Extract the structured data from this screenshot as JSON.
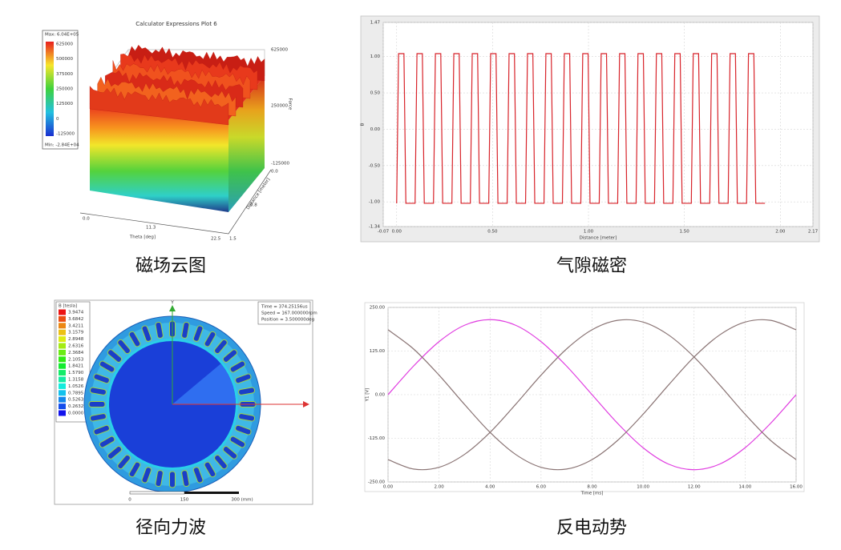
{
  "magnetic_field_plot": {
    "caption": "磁场云图",
    "title": "Calculator Expressions Plot 6",
    "legend": {
      "max": "Max: 6.04E+05",
      "min": "Min: -2.84E+04",
      "values": [
        "625000",
        "500000",
        "375000",
        "250000",
        "125000",
        "0",
        "-125000"
      ]
    },
    "z_axis": {
      "label": "Force",
      "ticks": [
        "625000",
        "250000",
        "-125000"
      ]
    },
    "x_axis": {
      "label": "Theta [deg]",
      "ticks": [
        "0.0",
        "11.3",
        "22.5"
      ]
    },
    "y_axis": {
      "label": "Distance [meter]",
      "ticks": [
        "0.0",
        "0.8",
        "1.5"
      ]
    }
  },
  "air_gap_flux": {
    "caption": "气隙磁密",
    "chart": {
      "type": "line",
      "x_label": "Distance [meter]",
      "y_label": "B",
      "xlim": [
        -0.07,
        2.17
      ],
      "ylim": [
        -1.34,
        1.47
      ],
      "xticks": [
        -0.07,
        {
          "value": 0,
          "label": "0.00"
        },
        {
          "value": 0.5,
          "label": "0.50"
        },
        {
          "value": 1,
          "label": "1.00"
        },
        {
          "value": 1.5,
          "label": "1.50"
        },
        {
          "value": 2,
          "label": "2.00"
        },
        2.17
      ],
      "yticks": [
        1.47,
        {
          "value": 1,
          "label": "1.00"
        },
        {
          "value": 0.5,
          "label": "0.50"
        },
        {
          "value": 0,
          "label": "0.00"
        },
        {
          "value": -0.5,
          "label": "-0.50"
        },
        {
          "value": -1,
          "label": "-1.00"
        },
        -1.34
      ],
      "grid": true,
      "smooth": false,
      "x": [
        0,
        0.01,
        0.038,
        0.048,
        0.096,
        0.106,
        0.134,
        0.144,
        0.192,
        0.202,
        0.23,
        0.24,
        0.288,
        0.298,
        0.326,
        0.336,
        0.384,
        0.394,
        0.422,
        0.432,
        0.48,
        0.49,
        0.518,
        0.528,
        0.576,
        0.586,
        0.614,
        0.624,
        0.672,
        0.682,
        0.71,
        0.72,
        0.768,
        0.778,
        0.806,
        0.816,
        0.864,
        0.874,
        0.902,
        0.912,
        0.96,
        0.97,
        0.998,
        1.008,
        1.056,
        1.066,
        1.094,
        1.104,
        1.152,
        1.162,
        1.19,
        1.2,
        1.248,
        1.258,
        1.286,
        1.296,
        1.344,
        1.354,
        1.382,
        1.392,
        1.44,
        1.45,
        1.478,
        1.488,
        1.536,
        1.546,
        1.574,
        1.584,
        1.632,
        1.642,
        1.67,
        1.68,
        1.728,
        1.738,
        1.766,
        1.776,
        1.824,
        1.834,
        1.862,
        1.872,
        1.92
      ],
      "series": [
        {
          "color": "#d8232a",
          "values": [
            -1.02,
            1.04,
            1.04,
            -1.02,
            -1.02,
            1.04,
            1.04,
            -1.02,
            -1.02,
            1.04,
            1.04,
            -1.02,
            -1.02,
            1.04,
            1.04,
            -1.02,
            -1.02,
            1.04,
            1.04,
            -1.02,
            -1.02,
            1.04,
            1.04,
            -1.02,
            -1.02,
            1.04,
            1.04,
            -1.02,
            -1.02,
            1.04,
            1.04,
            -1.02,
            -1.02,
            1.04,
            1.04,
            -1.02,
            -1.02,
            1.04,
            1.04,
            -1.02,
            -1.02,
            1.04,
            1.04,
            -1.02,
            -1.02,
            1.04,
            1.04,
            -1.02,
            -1.02,
            1.04,
            1.04,
            -1.02,
            -1.02,
            1.04,
            1.04,
            -1.02,
            -1.02,
            1.04,
            1.04,
            -1.02,
            -1.02,
            1.04,
            1.04,
            -1.02,
            -1.02,
            1.04,
            1.04,
            -1.02,
            -1.02,
            1.04,
            1.04,
            -1.02,
            -1.02,
            1.04,
            1.04,
            -1.02,
            -1.02,
            1.04,
            1.04,
            -1.02,
            -1.02
          ]
        }
      ]
    }
  },
  "radial_force": {
    "caption": "径向力波",
    "legend": {
      "title": "B [tesla]",
      "values": [
        "3.9474",
        "3.6842",
        "3.4211",
        "3.1579",
        "2.8948",
        "2.6316",
        "2.3684",
        "2.1053",
        "1.8421",
        "1.5790",
        "1.3158",
        "1.0526",
        "0.7895",
        "0.5263",
        "0.2632",
        "0.0000"
      ]
    },
    "info": [
      "Time = 374.25156us",
      "Speed = 167.000000rpm",
      "Position = 3.500000deg"
    ],
    "axis_label": "Y",
    "scale": [
      "0",
      "150",
      "300 (mm)"
    ]
  },
  "back_emf": {
    "caption": "反电动势",
    "chart": {
      "type": "line",
      "x_label": "Time [ms]",
      "y_label": "Y1 [V]",
      "xlim": [
        0,
        16
      ],
      "ylim": [
        -250,
        250
      ],
      "xticks": [
        {
          "value": 0,
          "label": "0.00"
        },
        {
          "value": 2,
          "label": "2.00"
        },
        {
          "value": 4,
          "label": "4.00"
        },
        {
          "value": 6,
          "label": "6.00"
        },
        {
          "value": 8,
          "label": "8.00"
        },
        {
          "value": 10,
          "label": "10.00"
        },
        {
          "value": 12,
          "label": "12.00"
        },
        {
          "value": 14,
          "label": "14.00"
        },
        {
          "value": 16,
          "label": "16.00"
        }
      ],
      "yticks": [
        {
          "value": 250,
          "label": "250.00"
        },
        {
          "value": 125,
          "label": "125.00"
        },
        {
          "value": 0,
          "label": "0.00"
        },
        {
          "value": -125,
          "label": "-125.00"
        },
        {
          "value": -250,
          "label": "-250.00"
        }
      ],
      "grid": true,
      "smooth": true,
      "x": [
        0,
        1,
        2,
        3,
        4,
        5,
        6,
        7,
        8,
        9,
        10,
        11,
        12,
        13,
        14,
        15,
        16
      ],
      "series": [
        {
          "color": "#e03de0",
          "values": [
            0,
            82,
            152,
            199,
            215,
            199,
            152,
            82,
            0,
            -82,
            -152,
            -199,
            -215,
            -199,
            -152,
            -82,
            0
          ]
        },
        {
          "color": "#8a7474",
          "values": [
            -186,
            -213,
            -208,
            -171,
            -108,
            -28,
            56,
            131,
            186,
            213,
            208,
            171,
            108,
            28,
            -56,
            -131,
            -186
          ]
        },
        {
          "color": "#8a7474",
          "values": [
            186,
            131,
            56,
            -28,
            -108,
            -171,
            -208,
            -213,
            -186,
            -131,
            -56,
            28,
            108,
            171,
            208,
            213,
            186
          ]
        }
      ]
    }
  }
}
